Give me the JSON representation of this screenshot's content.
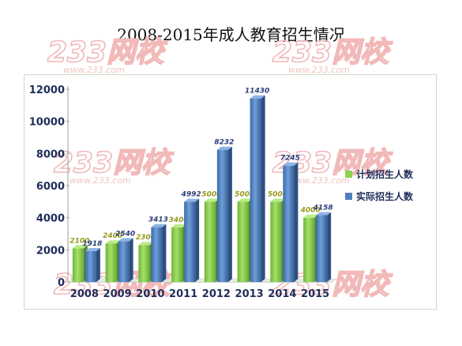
{
  "chart_data": {
    "type": "bar",
    "title": "2008-2015年成人教育招生情况",
    "categories": [
      "2008",
      "2009",
      "2010",
      "2011",
      "2012",
      "2013",
      "2014",
      "2015"
    ],
    "series": [
      {
        "name": "计划招生人数",
        "color": "#8fd14f",
        "values": [
          2100,
          2400,
          2300,
          3400,
          5000,
          5000,
          5000,
          4000
        ],
        "labels": [
          "2100",
          "2400",
          "2300",
          "3400",
          "5000",
          "5000",
          "5000",
          "4000"
        ]
      },
      {
        "name": "实际招生人数",
        "color": "#4f7fbf",
        "values": [
          1918,
          2540,
          3413,
          4992,
          8232,
          11430,
          7245,
          4158
        ],
        "labels": [
          "1918",
          "2540",
          "3413",
          "4992",
          "8232",
          "11430",
          "7245",
          "4158"
        ]
      }
    ],
    "yticks": [
      0,
      2000,
      4000,
      6000,
      8000,
      10000,
      12000
    ],
    "ylim": [
      0,
      12000
    ],
    "legend_position": "right",
    "grid": false
  },
  "watermark": {
    "logo": "233网校",
    "sub": "www.233.com"
  }
}
